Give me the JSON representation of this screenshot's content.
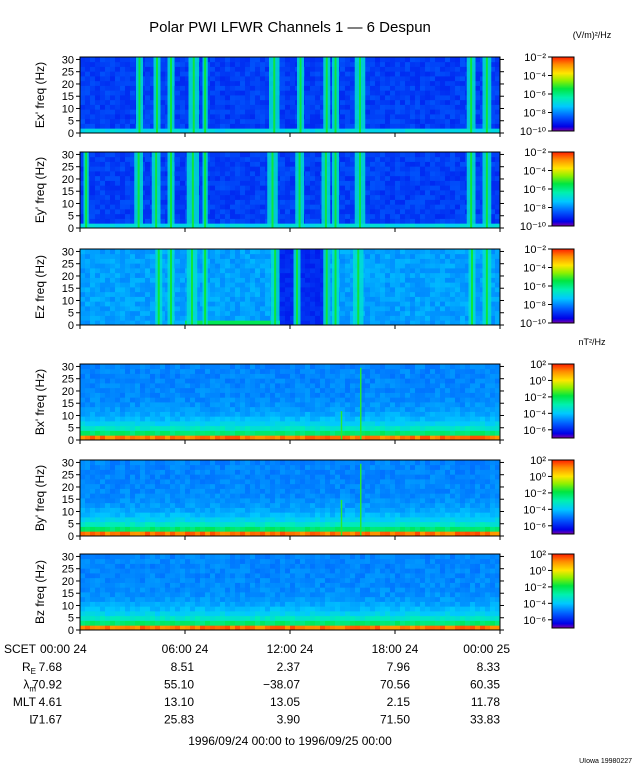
{
  "chart_data": {
    "type": "heatmap",
    "title": "Polar PWI LFWR Channels 1 — 6 Despun",
    "time_range": "1996/09/24 00:00 to 1996/09/25 00:00",
    "x_ticks": [
      "00:00 24",
      "06:00 24",
      "12:00 24",
      "18:00 24",
      "00:00 25"
    ],
    "x_tick_hours": [
      0,
      6,
      12,
      18,
      24
    ],
    "y_ticks": [
      0,
      5,
      10,
      15,
      20,
      25,
      30
    ],
    "ylim": [
      0,
      31
    ],
    "panels": [
      {
        "ylabel": "Ex' freq (Hz)",
        "kind": "E",
        "colorbar_unit": "(V/m)²/Hz",
        "bursts": [
          [
            3.2,
            3.6
          ],
          [
            4.2,
            4.6
          ],
          [
            5.0,
            5.4
          ],
          [
            6.2,
            6.8
          ],
          [
            7.0,
            7.3
          ],
          [
            10.8,
            11.4
          ],
          [
            12.4,
            12.8
          ],
          [
            13.9,
            14.3
          ],
          [
            14.4,
            14.8
          ],
          [
            15.7,
            16.3
          ],
          [
            22.1,
            22.6
          ],
          [
            23.0,
            23.5
          ]
        ]
      },
      {
        "ylabel": "Ey' freq (Hz)",
        "kind": "E",
        "bursts": [
          [
            0.2,
            0.5
          ],
          [
            3.1,
            3.6
          ],
          [
            4.1,
            4.6
          ],
          [
            5.0,
            5.4
          ],
          [
            6.1,
            6.8
          ],
          [
            7.0,
            7.3
          ],
          [
            10.7,
            11.3
          ],
          [
            12.3,
            12.8
          ],
          [
            13.8,
            14.3
          ],
          [
            14.4,
            14.8
          ],
          [
            15.7,
            16.3
          ],
          [
            22.1,
            22.6
          ],
          [
            23.0,
            23.5
          ]
        ]
      },
      {
        "ylabel": "Ez freq (Hz)",
        "kind": "Ez",
        "bursts": [
          [
            4.3,
            4.7
          ],
          [
            5.0,
            5.4
          ],
          [
            6.1,
            6.7
          ],
          [
            7.0,
            7.3
          ],
          [
            10.9,
            11.4
          ],
          [
            12.2,
            12.6
          ],
          [
            13.9,
            14.3
          ],
          [
            14.4,
            14.8
          ],
          [
            15.6,
            16.2
          ],
          [
            22.2,
            22.6
          ],
          [
            23.0,
            23.5
          ]
        ]
      },
      {
        "ylabel": "Bx' freq (Hz)",
        "kind": "B",
        "colorbar_unit": "nT²/Hz",
        "lines": [
          {
            "hour": 14.9,
            "strength": 0.4
          },
          {
            "hour": 16.0,
            "strength": 1.0
          }
        ]
      },
      {
        "ylabel": "By' freq (Hz)",
        "kind": "B",
        "lines": [
          {
            "hour": 14.9,
            "strength": 0.5
          },
          {
            "hour": 16.0,
            "strength": 1.0
          }
        ]
      },
      {
        "ylabel": "Bz freq (Hz)",
        "kind": "B",
        "lines": []
      }
    ],
    "colorbar_E": {
      "min_exp": -10,
      "max_exp": -2,
      "labels": [
        "10⁻²",
        "10⁻⁴",
        "10⁻⁶",
        "10⁻⁸",
        "10⁻¹⁰"
      ],
      "label_exps": [
        -2,
        -4,
        -6,
        -8,
        -10
      ]
    },
    "colorbar_B": {
      "min_exp": -7,
      "max_exp": 2,
      "labels": [
        "10²",
        "10⁰",
        "10⁻²",
        "10⁻⁴",
        "10⁻⁶"
      ],
      "label_exps": [
        2,
        0,
        -2,
        -4,
        -6
      ]
    },
    "ephemeris": {
      "row_labels": [
        "SCET",
        "R_E",
        "λ_m",
        "MLT",
        "L"
      ],
      "rows": [
        {
          "label": "R",
          "sub": "E",
          "values": [
            "7.68",
            "8.51",
            "2.37",
            "7.96",
            "8.33"
          ]
        },
        {
          "label": "λ",
          "sub": "m",
          "values": [
            "70.92",
            "55.10",
            "−38.07",
            "70.56",
            "60.35"
          ]
        },
        {
          "label": "MLT",
          "sub": "",
          "values": [
            "4.61",
            "13.10",
            "13.05",
            "2.15",
            "11.78"
          ]
        },
        {
          "label": "L",
          "sub": "",
          "values": [
            "71.67",
            "25.83",
            "3.90",
            "71.50",
            "33.83"
          ]
        }
      ]
    }
  },
  "credit": "UIowa 19980227"
}
